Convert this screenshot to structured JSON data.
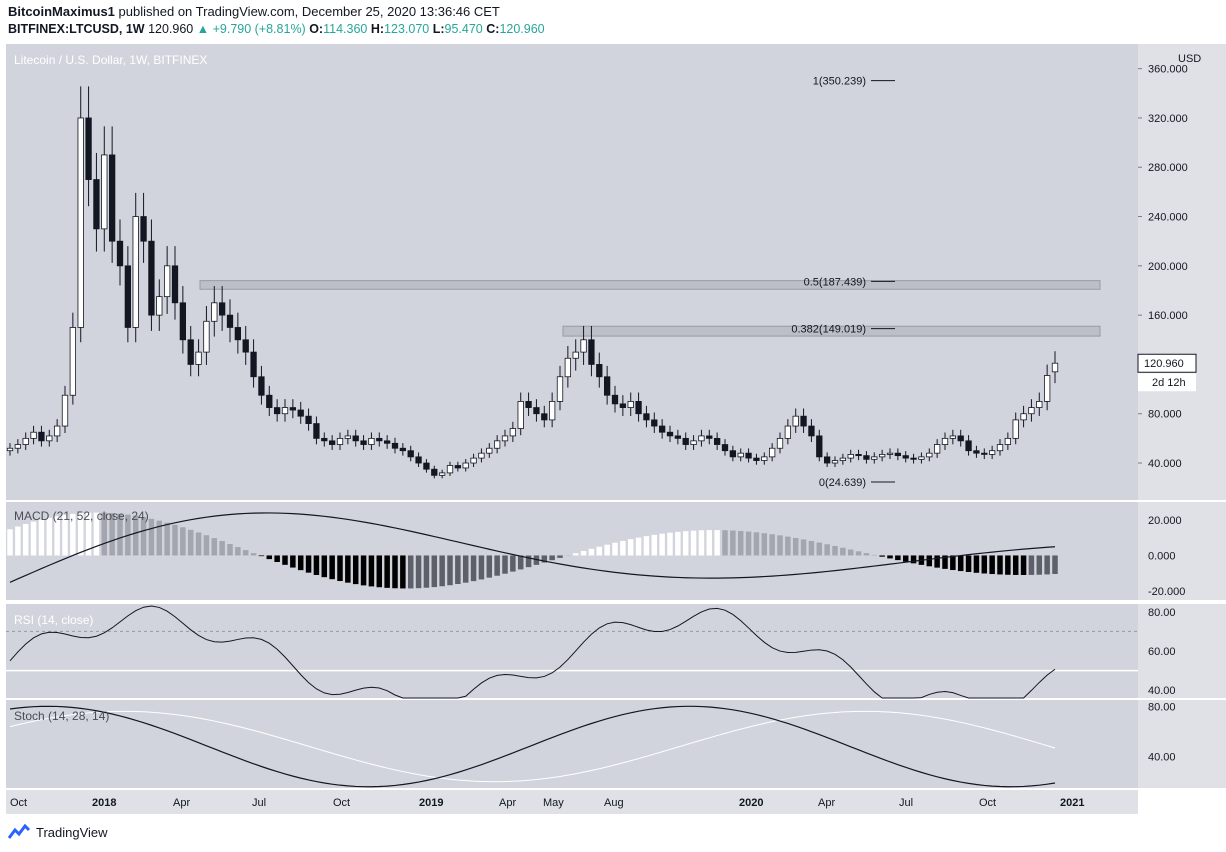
{
  "header": {
    "author": "BitcoinMaximus1",
    "published_text": "published on TradingView.com, December 25, 2020 13:36:46 CET",
    "symbol": "BITFINEX:LTCUSD, 1W",
    "last": "120.960",
    "change": "+9.790 (+8.81%)",
    "o_label": "O:",
    "o_val": "114.360",
    "h_label": "H:",
    "h_val": "123.070",
    "l_label": "L:",
    "l_val": "95.470",
    "c_label": "C:",
    "c_val": "120.960"
  },
  "footer": {
    "brand": "TradingView",
    "icon": "tradingview-logo-icon"
  },
  "colors": {
    "pane_bg": "#d1d4dc",
    "scale_bg": "#dfe1e6",
    "up": "#ffffff",
    "down": "#131722",
    "macd_pos_rising": "#ffffff",
    "macd_pos_falling": "#a3a6af",
    "macd_neg_falling": "#000000",
    "macd_neg_rising": "#5d6068"
  },
  "chart_data": [
    {
      "type": "candlestick",
      "title": "Litecoin / U.S. Dollar, 1W, BITFINEX",
      "currency": "USD",
      "ylim": [
        10,
        380
      ],
      "yticks": [
        "360.000",
        "320.000",
        "280.000",
        "240.000",
        "200.000",
        "160.000",
        "120.000",
        "80.000",
        "40.000"
      ],
      "last_price_label": "120.960",
      "countdown_label": "2d 12h",
      "fib_levels": [
        {
          "label": "1(350.239)",
          "value": 350.239
        },
        {
          "label": "0.5(187.439)",
          "value": 187.439
        },
        {
          "label": "0.382(149.019)",
          "value": 149.019
        },
        {
          "label": "0(24.639)",
          "value": 24.639
        }
      ],
      "resistance_zones": [
        {
          "from": 181,
          "to": 188
        },
        {
          "from": 143,
          "to": 151
        }
      ],
      "x_ticks": [
        "Oct",
        "2018",
        "Apr",
        "Jul",
        "Oct",
        "2019",
        "Apr",
        "May",
        "Aug",
        "2020",
        "Apr",
        "Jul",
        "Oct",
        "2021"
      ],
      "closes": [
        52,
        55,
        60,
        65,
        58,
        62,
        70,
        95,
        150,
        320,
        270,
        230,
        290,
        220,
        200,
        150,
        240,
        220,
        160,
        175,
        200,
        170,
        140,
        120,
        130,
        155,
        170,
        160,
        150,
        140,
        130,
        110,
        95,
        85,
        80,
        85,
        83,
        78,
        72,
        60,
        58,
        55,
        60,
        62,
        58,
        55,
        60,
        58,
        56,
        52,
        50,
        45,
        40,
        35,
        30,
        32,
        38,
        36,
        40,
        44,
        48,
        52,
        58,
        62,
        68,
        90,
        85,
        80,
        75,
        90,
        110,
        125,
        130,
        140,
        120,
        110,
        95,
        88,
        85,
        90,
        80,
        75,
        70,
        65,
        62,
        60,
        55,
        58,
        62,
        60,
        55,
        50,
        45,
        48,
        44,
        42,
        45,
        52,
        60,
        70,
        78,
        70,
        62,
        45,
        40,
        42,
        44,
        47,
        46,
        43,
        45,
        47,
        48,
        46,
        44,
        43,
        45,
        48,
        55,
        60,
        62,
        58,
        50,
        48,
        47,
        50,
        55,
        60,
        75,
        80,
        85,
        90,
        111,
        121
      ],
      "opens": [
        50,
        52,
        55,
        60,
        65,
        58,
        62,
        70,
        95,
        150,
        320,
        270,
        230,
        290,
        220,
        200,
        150,
        240,
        220,
        160,
        175,
        200,
        170,
        140,
        120,
        130,
        155,
        170,
        160,
        150,
        140,
        130,
        110,
        95,
        85,
        80,
        85,
        83,
        78,
        72,
        60,
        58,
        55,
        60,
        62,
        58,
        55,
        60,
        58,
        56,
        52,
        50,
        45,
        40,
        35,
        30,
        32,
        38,
        36,
        40,
        44,
        48,
        52,
        58,
        62,
        68,
        90,
        85,
        80,
        75,
        90,
        110,
        125,
        130,
        140,
        120,
        110,
        95,
        88,
        85,
        90,
        80,
        75,
        70,
        65,
        62,
        60,
        55,
        58,
        62,
        60,
        55,
        50,
        45,
        48,
        44,
        42,
        45,
        52,
        60,
        70,
        78,
        70,
        62,
        45,
        40,
        42,
        44,
        47,
        46,
        43,
        45,
        47,
        48,
        46,
        44,
        43,
        45,
        48,
        55,
        60,
        62,
        58,
        50,
        48,
        47,
        50,
        55,
        60,
        75,
        80,
        85,
        90,
        114
      ]
    },
    {
      "type": "macd",
      "title": "MACD (21, 52, close, 24)",
      "ylim": [
        -25,
        30
      ],
      "yticks": [
        "20.000",
        "0.000",
        "-20.000"
      ]
    },
    {
      "type": "line",
      "title": "RSI (14, close)",
      "ylim": [
        36,
        84
      ],
      "yticks": [
        "80.00",
        "60.00",
        "40.00"
      ],
      "bands": [
        70,
        50
      ]
    },
    {
      "type": "line",
      "title": "Stoch (14, 28, 14)",
      "ylim": [
        15,
        85
      ],
      "yticks": [
        "80.00",
        "40.00"
      ]
    }
  ]
}
